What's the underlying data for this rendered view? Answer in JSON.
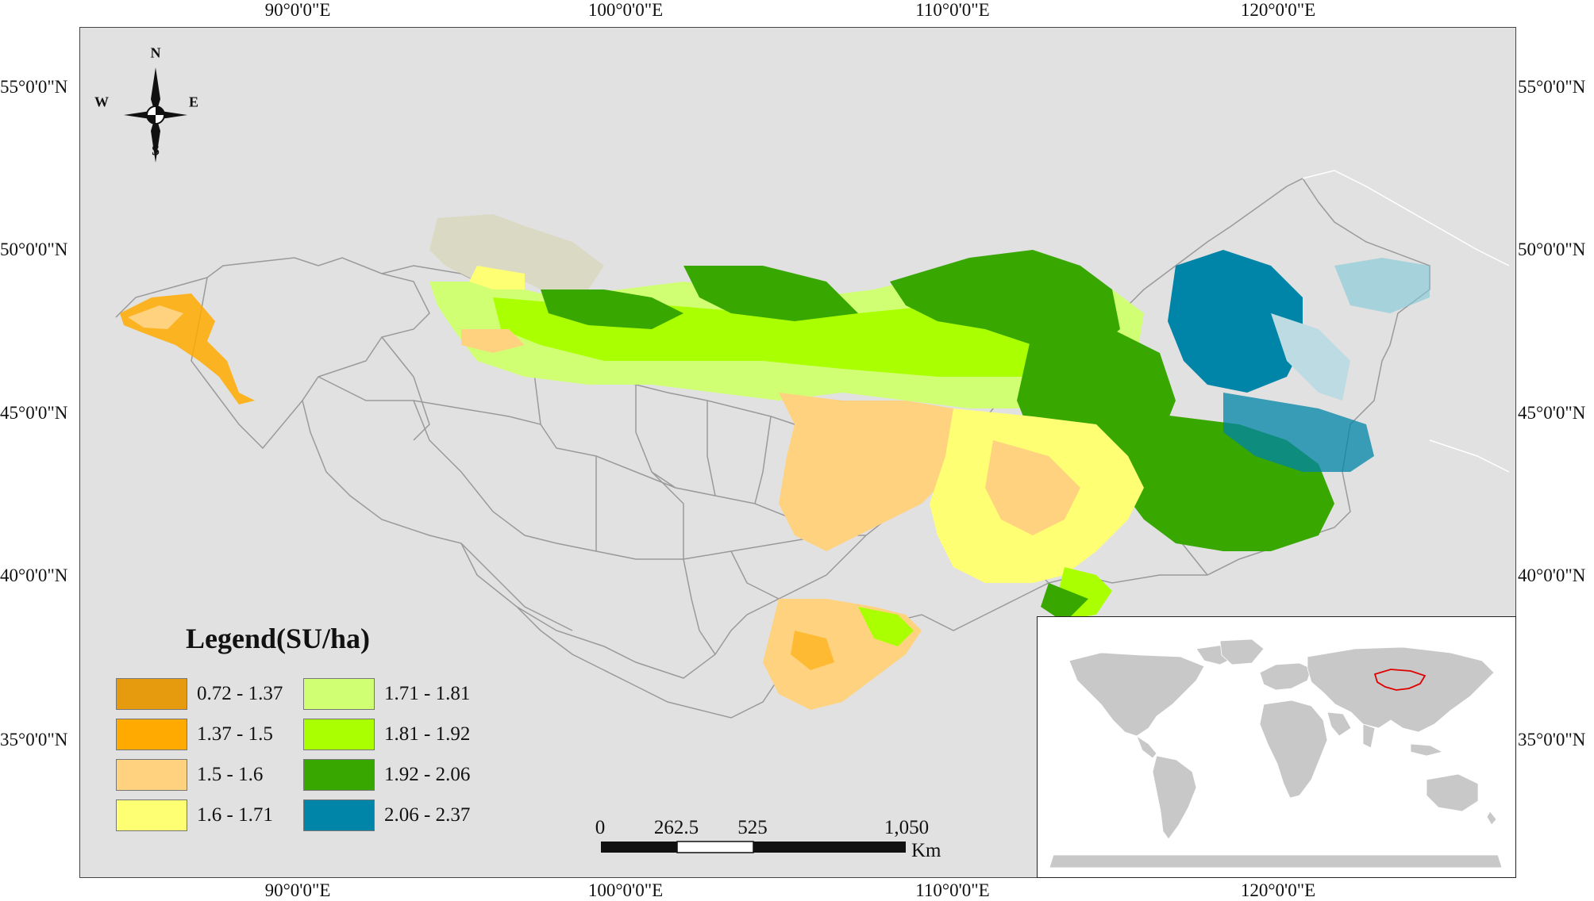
{
  "map": {
    "top_lon_labels": [
      "90°0'0\"E",
      "100°0'0\"E",
      "110°0'0\"E",
      "120°0'0\"E"
    ],
    "bottom_lon_labels": [
      "90°0'0\"E",
      "100°0'0\"E",
      "110°0'0\"E",
      "120°0'0\"E"
    ],
    "left_lat_labels": [
      "55°0'0\"N",
      "50°0'0\"N",
      "45°0'0\"N",
      "40°0'0\"N",
      "35°0'0\"N"
    ],
    "right_lat_labels": [
      "55°0'0\"N",
      "50°0'0\"N",
      "45°0'0\"N",
      "40°0'0\"N",
      "35°0'0\"N"
    ],
    "background_color": "#e1e1e1"
  },
  "compass": {
    "north": "N",
    "south": "S",
    "east": "E",
    "west": "W"
  },
  "legend": {
    "title": "Legend(SU/ha)",
    "items": [
      {
        "label": "0.72 - 1.37",
        "color": "#e69b0e"
      },
      {
        "label": "1.37 - 1.5",
        "color": "#ffaa00"
      },
      {
        "label": "1.5 - 1.6",
        "color": "#ffd27f"
      },
      {
        "label": "1.6 - 1.71",
        "color": "#ffff73"
      },
      {
        "label": "1.71 - 1.81",
        "color": "#d1ff73"
      },
      {
        "label": "1.81 - 1.92",
        "color": "#aaff00"
      },
      {
        "label": "1.92 - 2.06",
        "color": "#38a800"
      },
      {
        "label": "2.06 - 2.37",
        "color": "#0084a8"
      }
    ]
  },
  "scale_bar": {
    "labels": [
      "0",
      "262.5",
      "525",
      "1,050"
    ],
    "unit": "Km"
  },
  "inset": {
    "land_color": "#c8c8c8",
    "highlight_color": "#e00000"
  }
}
